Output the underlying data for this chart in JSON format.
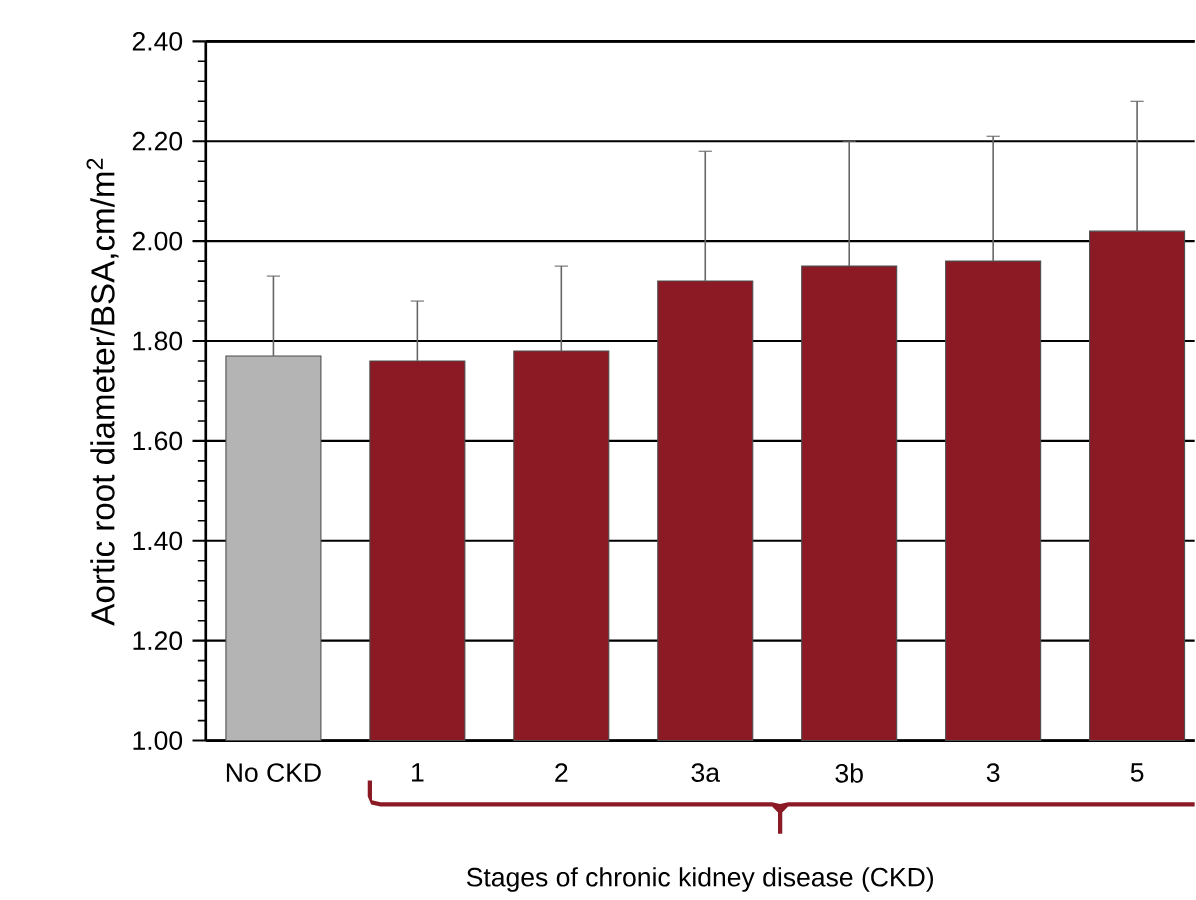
{
  "chart_data": {
    "type": "bar",
    "ylabel": "Aortic root diameter/BSA,cm/m$^{2}$",
    "xlabel": "Stages of chronic kidney disease (CKD)",
    "categories": [
      "No CKD",
      "1",
      "2",
      "3a",
      "3b",
      "3",
      "5"
    ],
    "values": [
      1.77,
      1.76,
      1.78,
      1.92,
      1.95,
      1.96,
      2.02
    ],
    "errors": [
      0.16,
      0.12,
      0.17,
      0.26,
      0.25,
      0.25,
      0.26
    ],
    "colors": [
      "#b4b4b4",
      "#8b1a25",
      "#8b1a25",
      "#8b1a25",
      "#8b1a25",
      "#8b1a25",
      "#8b1a25"
    ],
    "ylim": [
      1.0,
      2.4
    ],
    "yticks": [
      {
        "value": 1.0,
        "label": "1.00"
      },
      {
        "value": 1.2,
        "label": "1.20"
      },
      {
        "value": 1.4,
        "label": "1.40"
      },
      {
        "value": 1.6,
        "label": "1.60"
      },
      {
        "value": 1.8,
        "label": "1.80"
      },
      {
        "value": 2.0,
        "label": "2.00"
      },
      {
        "value": 2.2,
        "label": "2.20"
      },
      {
        "value": 2.4,
        "label": "2.40"
      }
    ],
    "grid": "y"
  }
}
